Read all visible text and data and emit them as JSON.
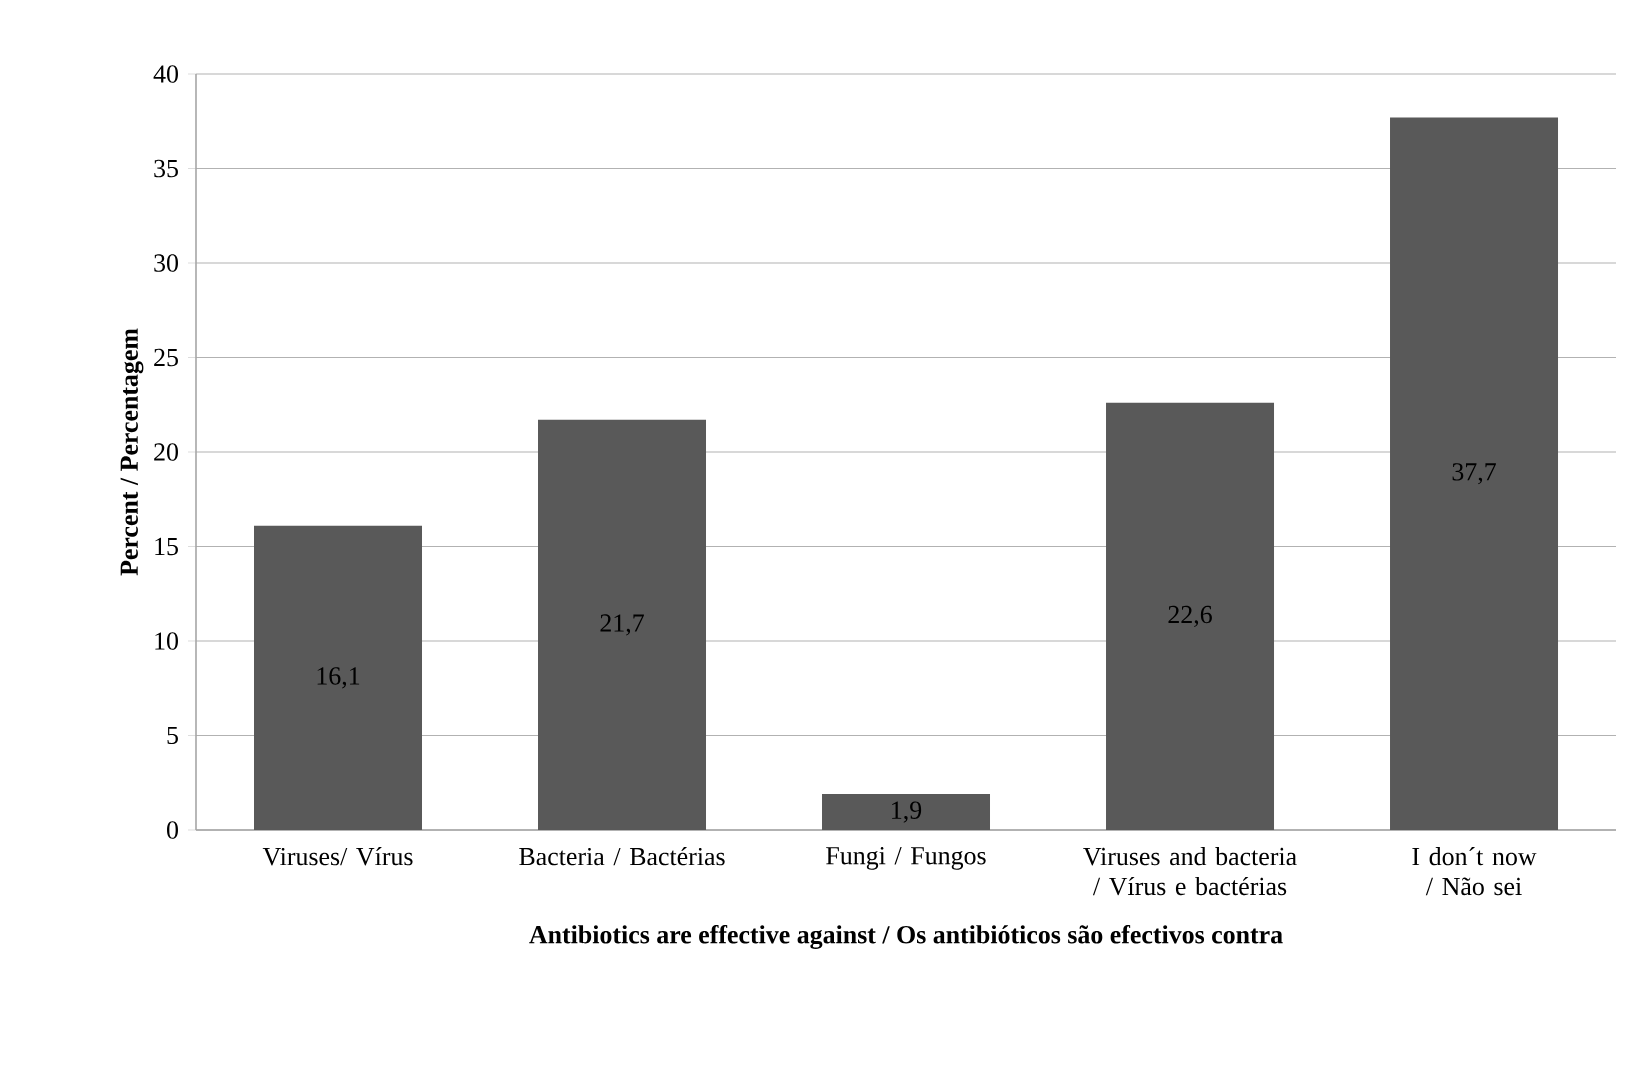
{
  "chart_data": {
    "type": "bar",
    "xlabel": "Antibiotics are effective against / Os antibióticos são efectivos contra",
    "ylabel": "Percent / Percentagem",
    "categories": [
      "Viruses/ Vírus",
      "Bacteria / Bactérias",
      "Fungi / Fungos",
      "Viruses and bacteria / Vírus e bactérias",
      "I don´t now / Não sei"
    ],
    "values": [
      16.1,
      21.7,
      1.9,
      22.6,
      37.7
    ],
    "value_labels": [
      "16,1",
      "21,7",
      "1,9",
      "22,6",
      "37,7"
    ],
    "color": "#595959",
    "ylim": [
      0,
      40
    ],
    "yticks": [
      0,
      5,
      10,
      15,
      20,
      25,
      30,
      35,
      40
    ],
    "grid": "y"
  }
}
